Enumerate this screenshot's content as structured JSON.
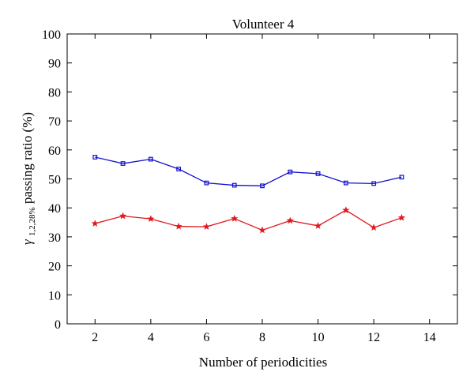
{
  "chart_data": {
    "type": "line",
    "title": "Volunteer 4",
    "xlabel": "Number of periodicities",
    "ylabel": {
      "symbol": "γ",
      "subscript": "1,2,28%",
      "text": " passing ratio (%)"
    },
    "xlim": [
      1,
      15
    ],
    "ylim": [
      0,
      100
    ],
    "xticks": [
      2,
      4,
      6,
      8,
      10,
      12,
      14
    ],
    "yticks": [
      0,
      10,
      20,
      30,
      40,
      50,
      60,
      70,
      80,
      90,
      100
    ],
    "grid": false,
    "x": [
      2,
      3,
      4,
      5,
      6,
      7,
      8,
      9,
      10,
      11,
      12,
      13
    ],
    "series": [
      {
        "color": "#1010d0",
        "marker": "square",
        "values": [
          57.5,
          55.3,
          56.8,
          53.4,
          48.6,
          47.8,
          47.6,
          52.4,
          51.8,
          48.6,
          48.4,
          50.6
        ]
      },
      {
        "color": "#e0181c",
        "marker": "star",
        "values": [
          34.6,
          37.2,
          36.2,
          33.6,
          33.5,
          36.3,
          32.3,
          35.6,
          33.8,
          39.2,
          33.2,
          36.6
        ]
      }
    ]
  }
}
